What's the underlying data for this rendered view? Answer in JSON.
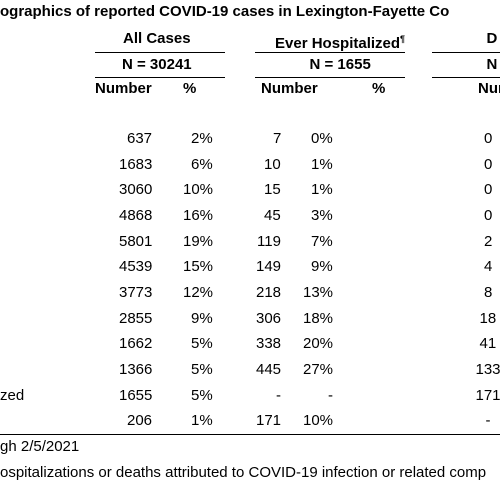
{
  "title": "ographics of reported COVID-19 cases in Lexington-Fayette Co",
  "header": {
    "groups": [
      "All Cases",
      "Ever Hospitalized",
      "D"
    ],
    "group_mark": "¶",
    "n": [
      "N = 30241",
      "N = 1655",
      "N"
    ],
    "columns": [
      "Number",
      "%",
      "Number",
      "%",
      "Numb"
    ]
  },
  "table": {
    "rows": [
      {
        "cells": [
          "637",
          "2%",
          "7",
          "0%",
          "0"
        ]
      },
      {
        "cells": [
          "1683",
          "6%",
          "10",
          "1%",
          "0"
        ]
      },
      {
        "cells": [
          "3060",
          "10%",
          "15",
          "1%",
          "0"
        ]
      },
      {
        "cells": [
          "4868",
          "16%",
          "45",
          "3%",
          "0"
        ]
      },
      {
        "cells": [
          "5801",
          "19%",
          "119",
          "7%",
          "2"
        ]
      },
      {
        "cells": [
          "4539",
          "15%",
          "149",
          "9%",
          "4"
        ]
      },
      {
        "cells": [
          "3773",
          "12%",
          "218",
          "13%",
          "8"
        ]
      },
      {
        "cells": [
          "2855",
          "9%",
          "306",
          "18%",
          "18"
        ]
      },
      {
        "cells": [
          "1662",
          "5%",
          "338",
          "20%",
          "41"
        ]
      },
      {
        "cells": [
          "1366",
          "5%",
          "445",
          "27%",
          "133"
        ]
      },
      {
        "label": "zed",
        "cells": [
          "1655",
          "5%",
          "-",
          "-",
          "171"
        ]
      },
      {
        "cells": [
          "206",
          "1%",
          "171",
          "10%",
          "-"
        ]
      }
    ]
  },
  "footnotes": [
    "gh 2/5/2021",
    "ospitalizations or deaths attributed to COVID-19 infection or related comp"
  ]
}
